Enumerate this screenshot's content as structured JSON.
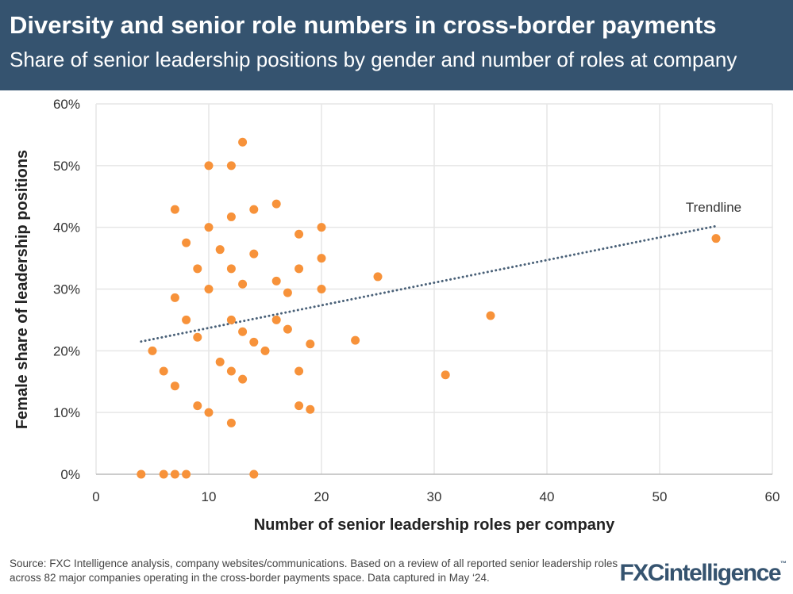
{
  "header": {
    "title": "Diversity and senior role numbers in cross-border payments",
    "subtitle": "Share of senior leadership positions by gender and number of roles at company"
  },
  "chart_data": {
    "type": "scatter",
    "xlabel": "Number of senior leadership roles per company",
    "ylabel": "Female share of leadership positions",
    "xlim": [
      0,
      60
    ],
    "ylim": [
      0,
      60
    ],
    "xticks": [
      "0",
      "10",
      "20",
      "30",
      "40",
      "50",
      "60"
    ],
    "yticks": [
      "0%",
      "10%",
      "20%",
      "30%",
      "40%",
      "50%",
      "60%"
    ],
    "grid": true,
    "point_color": "#f7923a",
    "trendline_color": "#4a6178",
    "trendline": {
      "label": "Trendline",
      "x": [
        4,
        55
      ],
      "y": [
        21.5,
        40.2
      ]
    },
    "points": [
      [
        4,
        0
      ],
      [
        6,
        0
      ],
      [
        7,
        0
      ],
      [
        8,
        0
      ],
      [
        14,
        0
      ],
      [
        5,
        20
      ],
      [
        6,
        16.7
      ],
      [
        7,
        14.3
      ],
      [
        7,
        28.6
      ],
      [
        7,
        42.9
      ],
      [
        8,
        37.5
      ],
      [
        8,
        25
      ],
      [
        9,
        33.3
      ],
      [
        9,
        22.2
      ],
      [
        9,
        11.1
      ],
      [
        10,
        50
      ],
      [
        10,
        40
      ],
      [
        10,
        30
      ],
      [
        10,
        10
      ],
      [
        11,
        36.4
      ],
      [
        11,
        18.2
      ],
      [
        12,
        50
      ],
      [
        12,
        41.7
      ],
      [
        12,
        33.3
      ],
      [
        12,
        25
      ],
      [
        12,
        16.7
      ],
      [
        12,
        8.3
      ],
      [
        13,
        53.8
      ],
      [
        13,
        30.8
      ],
      [
        13,
        23.1
      ],
      [
        13,
        15.4
      ],
      [
        14,
        42.9
      ],
      [
        14,
        35.7
      ],
      [
        14,
        21.4
      ],
      [
        15,
        20
      ],
      [
        16,
        43.8
      ],
      [
        16,
        31.3
      ],
      [
        16,
        25
      ],
      [
        17,
        29.4
      ],
      [
        17,
        23.5
      ],
      [
        18,
        38.9
      ],
      [
        18,
        33.3
      ],
      [
        18,
        16.7
      ],
      [
        18,
        11.1
      ],
      [
        19,
        21.1
      ],
      [
        19,
        10.5
      ],
      [
        20,
        40
      ],
      [
        20,
        35
      ],
      [
        20,
        30
      ],
      [
        23,
        21.7
      ],
      [
        25,
        32
      ],
      [
        31,
        16.1
      ],
      [
        35,
        25.7
      ],
      [
        55,
        38.2
      ]
    ]
  },
  "footer": {
    "source": "Source: FXC Intelligence analysis, company websites/communications. Based on a review of all reported senior leadership roles across 82 major companies operating in the cross-border payments space. Data captured in May ‘24.",
    "logo": "FXCintelligence",
    "logo_tm": "™"
  }
}
